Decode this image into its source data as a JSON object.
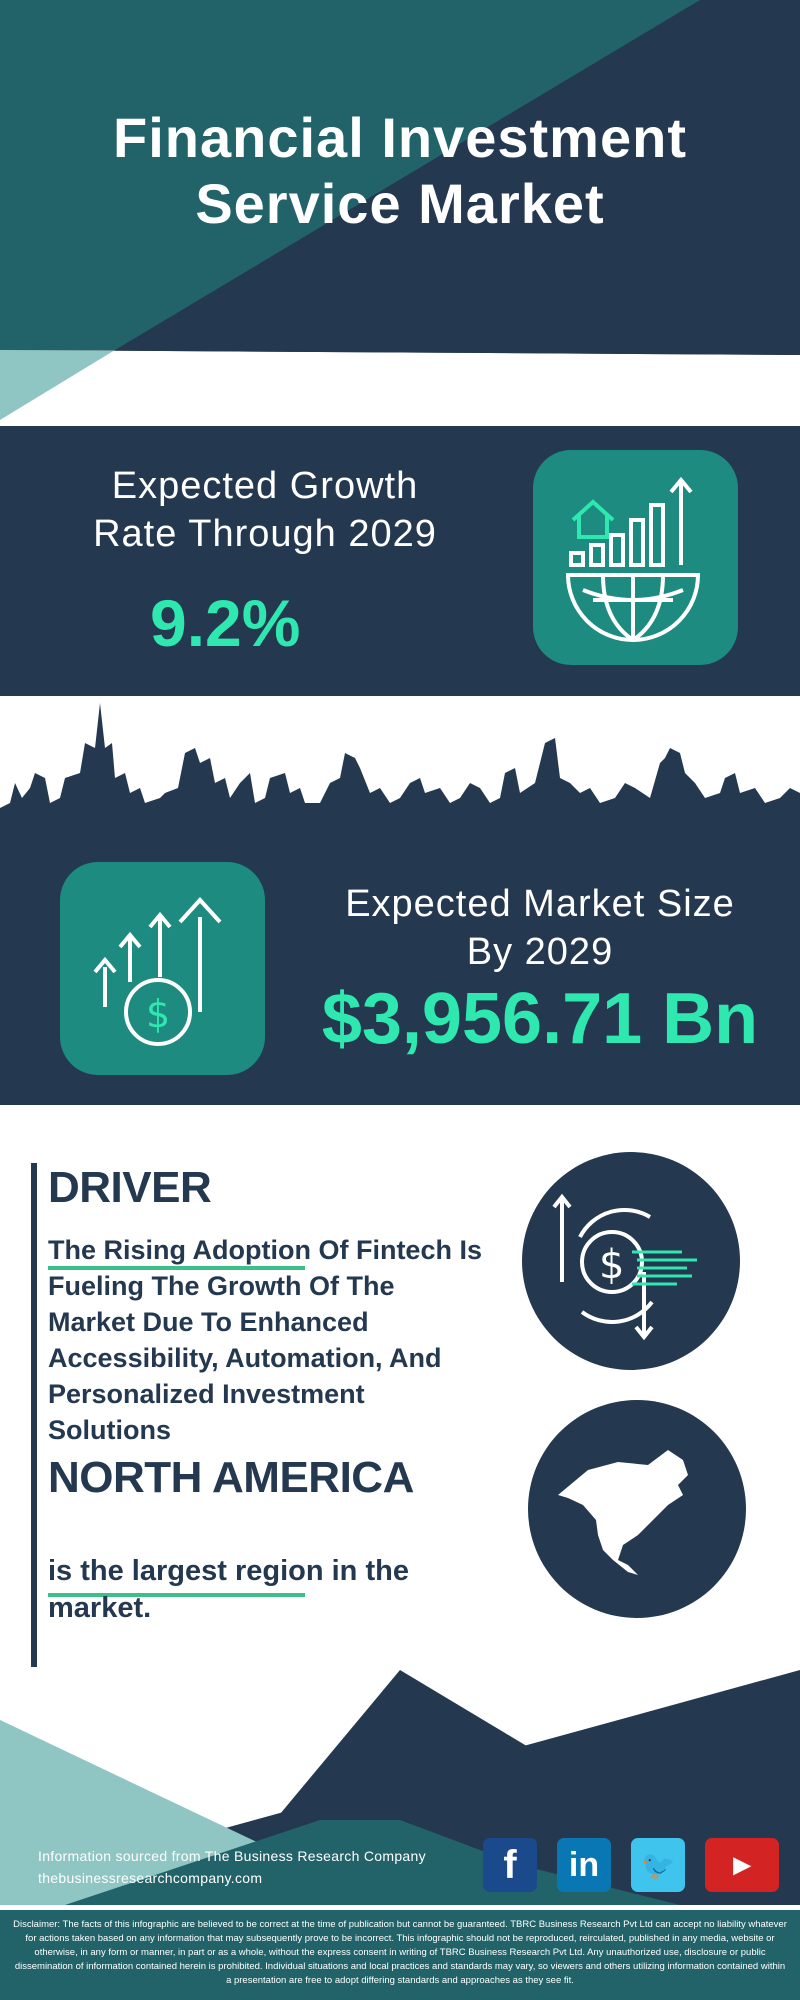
{
  "title": {
    "line1": "Financial Investment",
    "line2": "Service Market"
  },
  "growth": {
    "label_line1": "Expected Growth",
    "label_line2": "Rate Through 2029",
    "value": "9.2%",
    "icon": "globe-bar-chart-icon"
  },
  "market_size": {
    "label_line1": "Expected Market Size",
    "label_line2": "By 2029",
    "value": "$3,956.71 Bn",
    "icon": "dollar-coin-arrows-up-icon"
  },
  "driver": {
    "heading": "DRIVER",
    "text": "The Rising Adoption Of Fintech Is Fueling The Growth Of The Market Due To Enhanced Accessibility, Automation, And Personalized Investment Solutions",
    "icon": "dollar-exchange-icon"
  },
  "region": {
    "heading": "NORTH AMERICA",
    "text": "is the largest region in the market.",
    "icon": "north-america-map-icon"
  },
  "footer": {
    "source": "Information sourced from The Business Research Company",
    "url": "thebusinessresearchcompany.com",
    "social": [
      {
        "name": "facebook",
        "glyph": "f",
        "color": "#1b4a8c"
      },
      {
        "name": "linkedin",
        "glyph": "in",
        "color": "#0a77b5"
      },
      {
        "name": "twitter",
        "glyph": "🐦",
        "color": "#3fc4ee"
      },
      {
        "name": "youtube",
        "glyph": "▶",
        "color": "#d42323"
      }
    ]
  },
  "disclaimer": "Disclaimer: The facts of this infographic are believed to be correct at the time of publication but cannot be guaranteed. TBRC Business Research Pvt Ltd can accept no liability whatever for actions taken based on any information that may subsequently prove to be incorrect. This infographic should not be reproduced, reirculated, published in any media, website or otherwise, in any form or manner, in part or as a whole, without the express consent in writing of TBRC Business Research Pvt Ltd. Any unauthorized use, disclosure or public dissemination of information contained herein is prohibited. Individual situations and local practices and standards may vary, so viewers and others utilizing information contained within a presentation are free to adopt differing standards and approaches as they see fit.",
  "colors": {
    "dark": "#243850",
    "teal": "#216369",
    "light_teal": "#8fc6c3",
    "accent": "#2ee8b0",
    "icon_box": "#1d8b80"
  }
}
